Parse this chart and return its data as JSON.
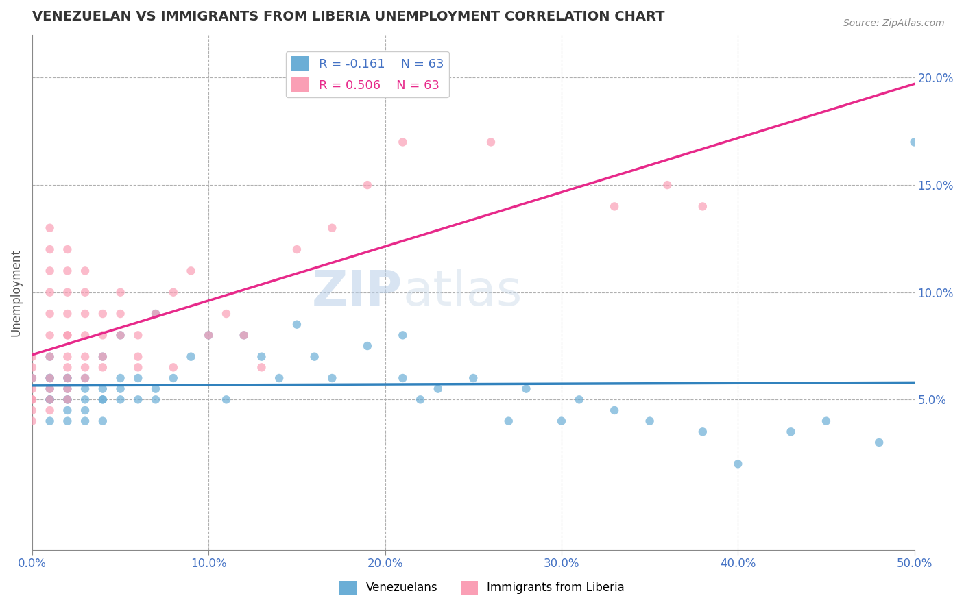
{
  "title": "VENEZUELAN VS IMMIGRANTS FROM LIBERIA UNEMPLOYMENT CORRELATION CHART",
  "source": "Source: ZipAtlas.com",
  "xlabel": "",
  "ylabel": "Unemployment",
  "xlim": [
    0.0,
    0.5
  ],
  "ylim": [
    -0.02,
    0.22
  ],
  "xticks": [
    0.0,
    0.1,
    0.2,
    0.3,
    0.4,
    0.5
  ],
  "xticklabels": [
    "0.0%",
    "10.0%",
    "20.0%",
    "30.0%",
    "40.0%",
    "50.0%"
  ],
  "yticks_right": [
    0.05,
    0.1,
    0.15,
    0.2
  ],
  "ytick_right_labels": [
    "5.0%",
    "10.0%",
    "15.0%",
    "20.0%"
  ],
  "legend_r_venezuelan": "-0.161",
  "legend_n_venezuelan": "63",
  "legend_r_liberia": "0.506",
  "legend_n_liberia": "63",
  "blue_color": "#6baed6",
  "pink_color": "#fa9fb5",
  "blue_line_color": "#3182bd",
  "pink_line_color": "#e7298a",
  "watermark_zip": "ZIP",
  "watermark_atlas": "atlas",
  "venezuelan_x": [
    0.0,
    0.01,
    0.01,
    0.01,
    0.01,
    0.01,
    0.01,
    0.01,
    0.01,
    0.02,
    0.02,
    0.02,
    0.02,
    0.02,
    0.02,
    0.02,
    0.03,
    0.03,
    0.03,
    0.03,
    0.03,
    0.04,
    0.04,
    0.04,
    0.04,
    0.04,
    0.05,
    0.05,
    0.05,
    0.05,
    0.06,
    0.06,
    0.07,
    0.07,
    0.07,
    0.08,
    0.09,
    0.1,
    0.11,
    0.12,
    0.13,
    0.14,
    0.15,
    0.16,
    0.17,
    0.19,
    0.21,
    0.21,
    0.22,
    0.23,
    0.25,
    0.27,
    0.28,
    0.3,
    0.31,
    0.33,
    0.35,
    0.38,
    0.4,
    0.43,
    0.45,
    0.48,
    0.5
  ],
  "venezuelan_y": [
    0.06,
    0.05,
    0.06,
    0.07,
    0.05,
    0.06,
    0.04,
    0.05,
    0.055,
    0.06,
    0.04,
    0.05,
    0.045,
    0.055,
    0.05,
    0.06,
    0.05,
    0.045,
    0.055,
    0.06,
    0.04,
    0.05,
    0.055,
    0.07,
    0.05,
    0.04,
    0.06,
    0.05,
    0.08,
    0.055,
    0.05,
    0.06,
    0.09,
    0.05,
    0.055,
    0.06,
    0.07,
    0.08,
    0.05,
    0.08,
    0.07,
    0.06,
    0.085,
    0.07,
    0.06,
    0.075,
    0.06,
    0.08,
    0.05,
    0.055,
    0.06,
    0.04,
    0.055,
    0.04,
    0.05,
    0.045,
    0.04,
    0.035,
    0.02,
    0.035,
    0.04,
    0.03,
    0.17
  ],
  "liberia_x": [
    0.0,
    0.0,
    0.0,
    0.0,
    0.0,
    0.0,
    0.0,
    0.0,
    0.01,
    0.01,
    0.01,
    0.01,
    0.01,
    0.01,
    0.01,
    0.01,
    0.01,
    0.01,
    0.01,
    0.02,
    0.02,
    0.02,
    0.02,
    0.02,
    0.02,
    0.02,
    0.02,
    0.02,
    0.02,
    0.02,
    0.03,
    0.03,
    0.03,
    0.03,
    0.03,
    0.03,
    0.03,
    0.04,
    0.04,
    0.04,
    0.04,
    0.05,
    0.05,
    0.05,
    0.06,
    0.06,
    0.06,
    0.07,
    0.08,
    0.08,
    0.09,
    0.1,
    0.11,
    0.12,
    0.13,
    0.15,
    0.17,
    0.19,
    0.21,
    0.26,
    0.33,
    0.36,
    0.38
  ],
  "liberia_y": [
    0.06,
    0.05,
    0.055,
    0.04,
    0.045,
    0.065,
    0.07,
    0.05,
    0.05,
    0.055,
    0.06,
    0.045,
    0.07,
    0.08,
    0.09,
    0.1,
    0.11,
    0.12,
    0.13,
    0.05,
    0.055,
    0.06,
    0.07,
    0.08,
    0.09,
    0.1,
    0.11,
    0.12,
    0.08,
    0.065,
    0.06,
    0.07,
    0.08,
    0.09,
    0.1,
    0.11,
    0.065,
    0.07,
    0.08,
    0.09,
    0.065,
    0.08,
    0.09,
    0.1,
    0.07,
    0.08,
    0.065,
    0.09,
    0.1,
    0.065,
    0.11,
    0.08,
    0.09,
    0.08,
    0.065,
    0.12,
    0.13,
    0.15,
    0.17,
    0.17,
    0.14,
    0.15,
    0.14
  ]
}
